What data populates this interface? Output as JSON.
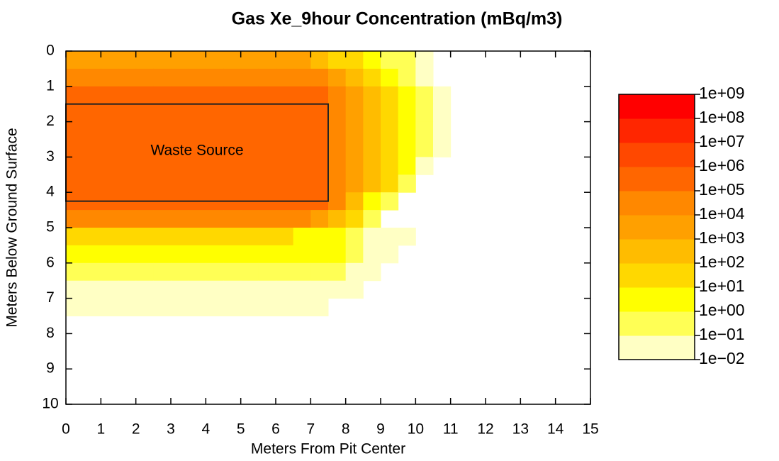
{
  "chart_data": {
    "type": "heatmap",
    "title": "Gas Xe_9hour Concentration (mBq/m3)",
    "x_label": "Meters From Pit Center",
    "y_label": "Meters Below Ground Surface",
    "xlim": [
      0,
      15
    ],
    "ylim": [
      10,
      0
    ],
    "xticks": [
      0,
      1,
      2,
      3,
      4,
      5,
      6,
      7,
      8,
      9,
      10,
      11,
      12,
      13,
      14,
      15
    ],
    "yticks": [
      0,
      1,
      2,
      3,
      4,
      5,
      6,
      7,
      8,
      9,
      10
    ],
    "x_edges": [
      0,
      0.5,
      1,
      1.5,
      2,
      2.5,
      3,
      3.5,
      4,
      4.5,
      5,
      5.5,
      6,
      6.5,
      7,
      7.5,
      8,
      8.5,
      9,
      9.5,
      10,
      10.5,
      11
    ],
    "y_edges": [
      0,
      0.5,
      1,
      1.5,
      2,
      2.5,
      3,
      3.5,
      4,
      4.5,
      5,
      5.5,
      6,
      6.5,
      7,
      7.5
    ],
    "z": [
      [
        3000,
        3000,
        3000,
        3000,
        3000,
        3000,
        3000,
        3000,
        3000,
        3000,
        3000,
        3000,
        3000,
        3000,
        300,
        30,
        30,
        3,
        0.3,
        0.3,
        0.03,
        null
      ],
      [
        30000,
        30000,
        30000,
        30000,
        30000,
        30000,
        30000,
        30000,
        30000,
        30000,
        30000,
        30000,
        30000,
        30000,
        30000,
        3000,
        300,
        30,
        3,
        0.3,
        0.03,
        null
      ],
      [
        300000,
        300000,
        300000,
        300000,
        300000,
        300000,
        300000,
        300000,
        300000,
        300000,
        300000,
        300000,
        300000,
        300000,
        300000,
        30000,
        3000,
        300,
        30,
        3,
        0.3,
        0.03
      ],
      [
        300000,
        300000,
        300000,
        300000,
        300000,
        300000,
        300000,
        300000,
        300000,
        300000,
        300000,
        300000,
        300000,
        300000,
        300000,
        30000,
        3000,
        300,
        30,
        3,
        0.3,
        0.03
      ],
      [
        300000,
        300000,
        300000,
        300000,
        300000,
        300000,
        300000,
        300000,
        300000,
        300000,
        300000,
        300000,
        300000,
        300000,
        300000,
        30000,
        3000,
        300,
        30,
        3,
        0.3,
        0.03
      ],
      [
        300000,
        300000,
        300000,
        300000,
        300000,
        300000,
        300000,
        300000,
        300000,
        300000,
        300000,
        300000,
        300000,
        300000,
        300000,
        30000,
        3000,
        300,
        30,
        3,
        0.3,
        0.03
      ],
      [
        300000,
        300000,
        300000,
        300000,
        300000,
        300000,
        300000,
        300000,
        300000,
        300000,
        300000,
        300000,
        300000,
        300000,
        300000,
        30000,
        3000,
        300,
        30,
        3,
        0.03,
        null
      ],
      [
        300000,
        300000,
        300000,
        300000,
        300000,
        300000,
        300000,
        300000,
        300000,
        300000,
        300000,
        300000,
        300000,
        300000,
        300000,
        30000,
        3000,
        300,
        30,
        0.3,
        null,
        null
      ],
      [
        300000,
        300000,
        300000,
        300000,
        300000,
        300000,
        300000,
        300000,
        300000,
        300000,
        300000,
        300000,
        300000,
        300000,
        300000,
        30000,
        300,
        3,
        0.3,
        null,
        null,
        null
      ],
      [
        30000,
        30000,
        30000,
        30000,
        30000,
        30000,
        30000,
        30000,
        30000,
        30000,
        30000,
        30000,
        30000,
        30000,
        3000,
        300,
        30,
        0.3,
        null,
        null,
        null,
        null
      ],
      [
        30,
        30,
        30,
        30,
        30,
        30,
        30,
        30,
        30,
        30,
        30,
        30,
        30,
        3,
        3,
        3,
        0.3,
        0.03,
        0.03,
        0.03,
        null,
        null
      ],
      [
        3,
        3,
        3,
        3,
        3,
        3,
        3,
        3,
        3,
        3,
        3,
        3,
        3,
        3,
        3,
        3,
        0.3,
        0.03,
        0.03,
        null,
        null,
        null
      ],
      [
        0.3,
        0.3,
        0.3,
        0.3,
        0.3,
        0.3,
        0.3,
        0.3,
        0.3,
        0.3,
        0.3,
        0.3,
        0.3,
        0.3,
        0.3,
        0.3,
        0.03,
        0.03,
        null,
        null,
        null,
        null
      ],
      [
        0.03,
        0.03,
        0.03,
        0.03,
        0.03,
        0.03,
        0.03,
        0.03,
        0.03,
        0.03,
        0.03,
        0.03,
        0.03,
        0.03,
        0.03,
        0.03,
        0.03,
        null,
        null,
        null,
        null,
        null
      ],
      [
        0.03,
        0.03,
        0.03,
        0.03,
        0.03,
        0.03,
        0.03,
        0.03,
        0.03,
        0.03,
        0.03,
        0.03,
        0.03,
        0.03,
        0.03,
        null,
        null,
        null,
        null,
        null,
        null,
        null
      ]
    ],
    "levels": [
      {
        "value": 0.01,
        "label": "1e−02"
      },
      {
        "value": 0.1,
        "label": "1e−01"
      },
      {
        "value": 1,
        "label": "1e+00"
      },
      {
        "value": 10,
        "label": "1e+01"
      },
      {
        "value": 100,
        "label": "1e+02"
      },
      {
        "value": 1000,
        "label": "1e+03"
      },
      {
        "value": 10000,
        "label": "1e+04"
      },
      {
        "value": 100000,
        "label": "1e+05"
      },
      {
        "value": 1000000,
        "label": "1e+06"
      },
      {
        "value": 10000000,
        "label": "1e+07"
      },
      {
        "value": 100000000,
        "label": "1e+08"
      },
      {
        "value": 1000000000,
        "label": "1e+09"
      }
    ],
    "colors": [
      "#ffffc4",
      "#ffff55",
      "#ffff00",
      "#ffd800",
      "#ffbc00",
      "#ffa000",
      "#ff8800",
      "#ff6600",
      "#ff4800",
      "#ff2600",
      "#ff0000"
    ],
    "annotation": {
      "text": "Waste Source",
      "x": [
        0,
        7.5
      ],
      "y": [
        1.5,
        4.25
      ]
    }
  }
}
